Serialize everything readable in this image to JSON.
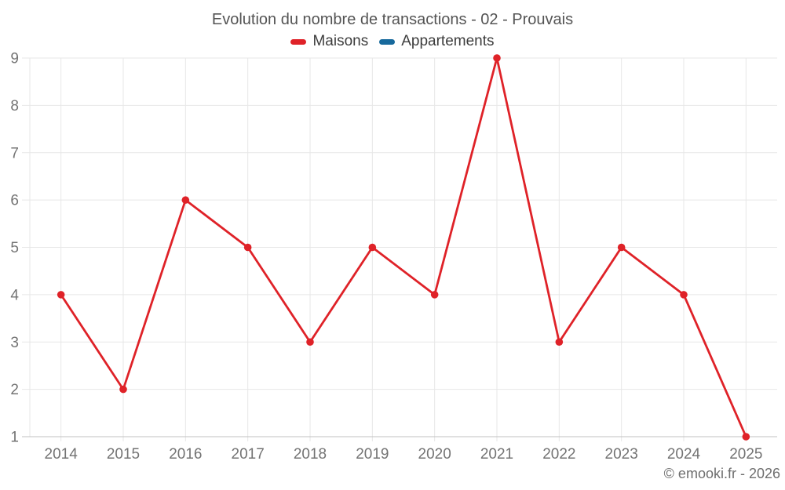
{
  "title": "Evolution du nombre de transactions - 02 - Prouvais",
  "footer": "© emooki.fr - 2026",
  "chart_data": {
    "type": "line",
    "title": "Evolution du nombre de transactions - 02 - Prouvais",
    "categories": [
      "2014",
      "2015",
      "2016",
      "2017",
      "2018",
      "2019",
      "2020",
      "2021",
      "2022",
      "2023",
      "2024",
      "2025"
    ],
    "series": [
      {
        "name": "Maisons",
        "color": "#df2228",
        "values": [
          4,
          2,
          6,
          5,
          3,
          5,
          4,
          9,
          3,
          5,
          4,
          1
        ]
      },
      {
        "name": "Appartements",
        "color": "#17699c",
        "values": []
      }
    ],
    "xlabel": "",
    "ylabel": "",
    "ylim": [
      1,
      9
    ],
    "ytick_interval": 1,
    "grid": true,
    "legend_position": "top",
    "marker": "circle"
  },
  "colors": {
    "background": "#ffffff",
    "grid_line": "#e7e7e7",
    "axis_line": "#c2c2c2",
    "tick_mark": "#dcdcdc",
    "tick_label": "#737373",
    "title_text": "#545454",
    "legend_text": "#3d3d3d",
    "footer_text": "#6e6e6e"
  }
}
